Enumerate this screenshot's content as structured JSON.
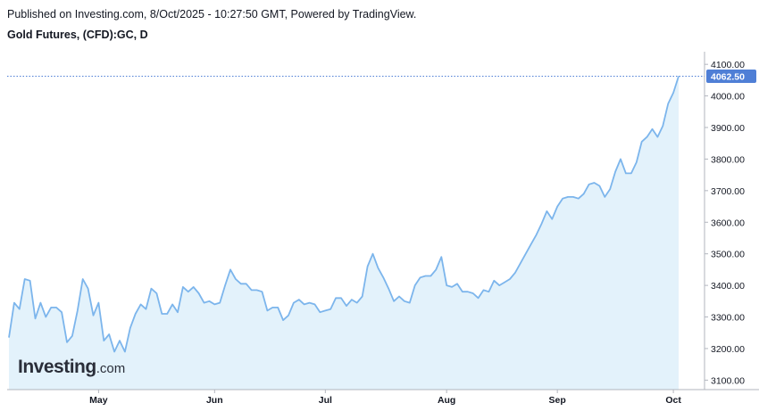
{
  "header": {
    "published": "Published on Investing.com, 8/Oct/2025 - 10:27:50 GMT, Powered by TradingView.",
    "instrument": "Gold Futures, (CFD):GC, D"
  },
  "logo": {
    "main": "Investing",
    "sub": ".com"
  },
  "colors": {
    "line": "#7cb5ec",
    "fill": "#e3f2fb",
    "badge": "#4f7fd6",
    "grid": "#e0e3eb",
    "axis": "#b2b5be"
  },
  "chart_data": {
    "type": "area",
    "title": "Gold Futures, (CFD):GC, D",
    "last_price": 4062.5,
    "last_price_label": "4062.50",
    "ylim": [
      3070,
      4140
    ],
    "y_ticks": [
      3100,
      3200,
      3300,
      3400,
      3500,
      3600,
      3700,
      3800,
      3900,
      4000,
      4100
    ],
    "y_tick_labels": [
      "3100.00",
      "3200.00",
      "3300.00",
      "3400.00",
      "3500.00",
      "3600.00",
      "3700.00",
      "3800.00",
      "3900.00",
      "4000.00",
      "4100.00"
    ],
    "x_ticks": [
      {
        "label": "May",
        "date": "2025-05-01"
      },
      {
        "label": "Jun",
        "date": "2025-06-02"
      },
      {
        "label": "Jul",
        "date": "2025-07-01"
      },
      {
        "label": "Aug",
        "date": "2025-08-01"
      },
      {
        "label": "Sep",
        "date": "2025-09-01"
      },
      {
        "label": "Oct",
        "date": "2025-10-01"
      }
    ],
    "series": [
      {
        "values": [
          [
            "2025-04-08",
            3235
          ],
          [
            "2025-04-09",
            3345
          ],
          [
            "2025-04-10",
            3325
          ],
          [
            "2025-04-11",
            3420
          ],
          [
            "2025-04-14",
            3415
          ],
          [
            "2025-04-15",
            3295
          ],
          [
            "2025-04-16",
            3345
          ],
          [
            "2025-04-17",
            3300
          ],
          [
            "2025-04-18",
            3330
          ],
          [
            "2025-04-21",
            3330
          ],
          [
            "2025-04-22",
            3315
          ],
          [
            "2025-04-23",
            3220
          ],
          [
            "2025-04-24",
            3240
          ],
          [
            "2025-04-25",
            3320
          ],
          [
            "2025-04-28",
            3420
          ],
          [
            "2025-04-29",
            3390
          ],
          [
            "2025-04-30",
            3305
          ],
          [
            "2025-05-01",
            3345
          ],
          [
            "2025-05-02",
            3225
          ],
          [
            "2025-05-05",
            3245
          ],
          [
            "2025-05-06",
            3190
          ],
          [
            "2025-05-07",
            3225
          ],
          [
            "2025-05-08",
            3190
          ],
          [
            "2025-05-09",
            3265
          ],
          [
            "2025-05-12",
            3310
          ],
          [
            "2025-05-13",
            3340
          ],
          [
            "2025-05-14",
            3325
          ],
          [
            "2025-05-15",
            3390
          ],
          [
            "2025-05-16",
            3375
          ],
          [
            "2025-05-19",
            3310
          ],
          [
            "2025-05-20",
            3310
          ],
          [
            "2025-05-21",
            3340
          ],
          [
            "2025-05-22",
            3315
          ],
          [
            "2025-05-23",
            3395
          ],
          [
            "2025-05-26",
            3380
          ],
          [
            "2025-05-27",
            3395
          ],
          [
            "2025-05-28",
            3375
          ],
          [
            "2025-05-29",
            3345
          ],
          [
            "2025-05-30",
            3350
          ],
          [
            "2025-06-02",
            3340
          ],
          [
            "2025-06-03",
            3345
          ],
          [
            "2025-06-04",
            3400
          ],
          [
            "2025-06-05",
            3450
          ],
          [
            "2025-06-06",
            3420
          ],
          [
            "2025-06-09",
            3405
          ],
          [
            "2025-06-10",
            3405
          ],
          [
            "2025-06-11",
            3385
          ],
          [
            "2025-06-12",
            3385
          ],
          [
            "2025-06-13",
            3380
          ],
          [
            "2025-06-16",
            3320
          ],
          [
            "2025-06-17",
            3330
          ],
          [
            "2025-06-18",
            3330
          ],
          [
            "2025-06-19",
            3290
          ],
          [
            "2025-06-20",
            3305
          ],
          [
            "2025-06-23",
            3345
          ],
          [
            "2025-06-24",
            3355
          ],
          [
            "2025-06-25",
            3340
          ],
          [
            "2025-06-26",
            3345
          ],
          [
            "2025-06-27",
            3340
          ],
          [
            "2025-06-30",
            3315
          ],
          [
            "2025-07-01",
            3320
          ],
          [
            "2025-07-02",
            3325
          ],
          [
            "2025-07-03",
            3360
          ],
          [
            "2025-07-04",
            3360
          ],
          [
            "2025-07-07",
            3335
          ],
          [
            "2025-07-08",
            3355
          ],
          [
            "2025-07-09",
            3345
          ],
          [
            "2025-07-10",
            3365
          ],
          [
            "2025-07-11",
            3460
          ],
          [
            "2025-07-14",
            3500
          ],
          [
            "2025-07-15",
            3455
          ],
          [
            "2025-07-16",
            3425
          ],
          [
            "2025-07-17",
            3390
          ],
          [
            "2025-07-18",
            3350
          ],
          [
            "2025-07-21",
            3365
          ],
          [
            "2025-07-22",
            3350
          ],
          [
            "2025-07-23",
            3345
          ],
          [
            "2025-07-24",
            3400
          ],
          [
            "2025-07-25",
            3425
          ],
          [
            "2025-07-28",
            3430
          ],
          [
            "2025-07-29",
            3430
          ],
          [
            "2025-07-30",
            3450
          ],
          [
            "2025-07-31",
            3490
          ],
          [
            "2025-08-01",
            3400
          ],
          [
            "2025-08-04",
            3395
          ],
          [
            "2025-08-05",
            3405
          ],
          [
            "2025-08-06",
            3380
          ],
          [
            "2025-08-07",
            3380
          ],
          [
            "2025-08-08",
            3375
          ],
          [
            "2025-08-11",
            3360
          ],
          [
            "2025-08-12",
            3385
          ],
          [
            "2025-08-13",
            3380
          ],
          [
            "2025-08-14",
            3415
          ],
          [
            "2025-08-15",
            3400
          ],
          [
            "2025-08-18",
            3410
          ],
          [
            "2025-08-19",
            3420
          ],
          [
            "2025-08-20",
            3440
          ],
          [
            "2025-08-21",
            3470
          ],
          [
            "2025-08-22",
            3500
          ],
          [
            "2025-08-25",
            3530
          ],
          [
            "2025-08-26",
            3560
          ],
          [
            "2025-08-27",
            3595
          ],
          [
            "2025-08-28",
            3635
          ],
          [
            "2025-08-29",
            3610
          ],
          [
            "2025-09-01",
            3650
          ],
          [
            "2025-09-02",
            3675
          ],
          [
            "2025-09-03",
            3680
          ],
          [
            "2025-09-04",
            3680
          ],
          [
            "2025-09-05",
            3675
          ],
          [
            "2025-09-08",
            3690
          ],
          [
            "2025-09-09",
            3720
          ],
          [
            "2025-09-10",
            3725
          ],
          [
            "2025-09-11",
            3715
          ],
          [
            "2025-09-12",
            3680
          ],
          [
            "2025-09-15",
            3705
          ],
          [
            "2025-09-16",
            3760
          ],
          [
            "2025-09-17",
            3800
          ],
          [
            "2025-09-18",
            3755
          ],
          [
            "2025-09-19",
            3755
          ],
          [
            "2025-09-22",
            3790
          ],
          [
            "2025-09-23",
            3855
          ],
          [
            "2025-09-24",
            3870
          ],
          [
            "2025-09-25",
            3895
          ],
          [
            "2025-09-26",
            3870
          ],
          [
            "2025-09-29",
            3905
          ],
          [
            "2025-09-30",
            3975
          ],
          [
            "2025-10-01",
            4010
          ],
          [
            "2025-10-02",
            4062.5
          ]
        ]
      }
    ],
    "grid": false,
    "legend": "none"
  }
}
